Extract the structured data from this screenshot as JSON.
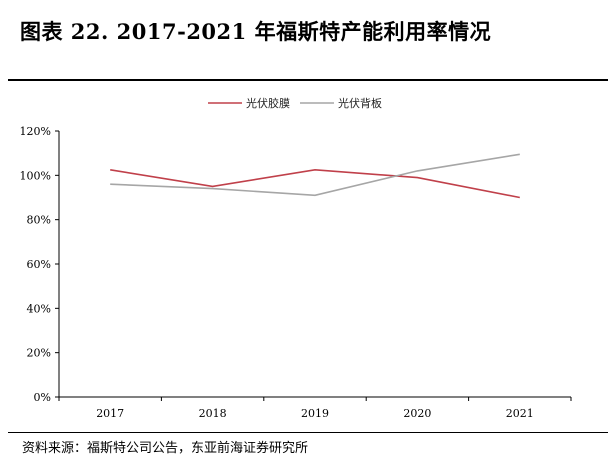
{
  "figure": {
    "title": "图表 22. 2017-2021 年福斯特产能利用率情况",
    "source": "资料来源：福斯特公司公告，东亚前海证券研究所"
  },
  "chart_data": {
    "type": "line",
    "x": [
      "2017",
      "2018",
      "2019",
      "2020",
      "2021"
    ],
    "series": [
      {
        "name": "光伏胶膜",
        "values": [
          102.5,
          95,
          102.5,
          99,
          90
        ],
        "color": "#c0404a"
      },
      {
        "name": "光伏背板",
        "values": [
          96,
          94,
          91,
          102,
          109.5
        ],
        "color": "#a6a6a6"
      }
    ],
    "ylim": [
      0,
      120
    ],
    "yticks": [
      "0%",
      "20%",
      "40%",
      "60%",
      "80%",
      "100%",
      "120%"
    ],
    "ytick_values": [
      0,
      20,
      40,
      60,
      80,
      100,
      120
    ],
    "legend": "top-center",
    "grid": false
  }
}
